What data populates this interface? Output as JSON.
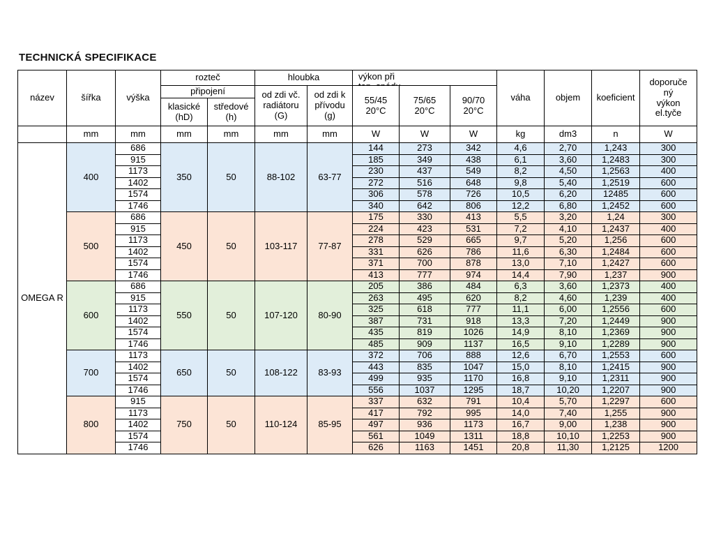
{
  "page_title": "TECHNICKÁ SPECIFIKACE",
  "product_name": "OMEGA R",
  "colors": {
    "blue": "#DDEBF7",
    "salmon": "#FCE4D6",
    "green": "#E2EFDA"
  },
  "header": {
    "nazev": "název",
    "sirka": "šířka",
    "vyska": "výška",
    "roztec": "rozteč",
    "pripojeni": "připojení",
    "klasicke": "klasické\n(hD)",
    "stredove": "středové\n(h)",
    "hloubka": "hloubka",
    "od_zdi_vc": "od zdi  vč.\nradiátoru\n(G)",
    "od_zdi_k": "od zdi  k\npřívodu\n(g)",
    "vykon_line1": "výkon při",
    "vykon_line2": "tep. spádu",
    "t5545": "55/45\n20°C",
    "t7565": "75/65\n20°C",
    "t9070": "90/70\n20°C",
    "vaha": "váha",
    "objem": "objem",
    "koeficient": "koeficient",
    "doporuceny": "doporuče\nný\nvýkon\nel.tyče"
  },
  "units": {
    "nazev": "",
    "sirka": "mm",
    "vyska": "mm",
    "klasicke": "mm",
    "stredove": "mm",
    "hloubka_g": "mm",
    "hloubka_gs": "mm",
    "w1": "W",
    "w2": "W",
    "w3": "W",
    "vaha": "kg",
    "objem": "dm3",
    "koeficient": "n",
    "el": "W"
  },
  "groups": [
    {
      "sirka": "400",
      "color": "blue",
      "roztec": "350",
      "stredove": "50",
      "hloubka_g": "88-102",
      "hloubka_gs": "63-77",
      "rows": [
        [
          "686",
          "144",
          "273",
          "342",
          "4,6",
          "2,70",
          "1,243",
          "300"
        ],
        [
          "915",
          "185",
          "349",
          "438",
          "6,1",
          "3,60",
          "1,2483",
          "300"
        ],
        [
          "1173",
          "230",
          "437",
          "549",
          "8,2",
          "4,50",
          "1,2563",
          "400"
        ],
        [
          "1402",
          "272",
          "516",
          "648",
          "9,8",
          "5,40",
          "1,2519",
          "600"
        ],
        [
          "1574",
          "306",
          "578",
          "726",
          "10,5",
          "6,20",
          "12485",
          "600"
        ],
        [
          "1746",
          "340",
          "642",
          "806",
          "12,2",
          "6,80",
          "1,2452",
          "600"
        ]
      ]
    },
    {
      "sirka": "500",
      "color": "salmon",
      "roztec": "450",
      "stredove": "50",
      "hloubka_g": "103-117",
      "hloubka_gs": "77-87",
      "rows": [
        [
          "686",
          "175",
          "330",
          "413",
          "5,5",
          "3,20",
          "1,24",
          "300"
        ],
        [
          "915",
          "224",
          "423",
          "531",
          "7,2",
          "4,10",
          "1,2437",
          "400"
        ],
        [
          "1173",
          "278",
          "529",
          "665",
          "9,7",
          "5,20",
          "1,256",
          "600"
        ],
        [
          "1402",
          "331",
          "626",
          "786",
          "11,6",
          "6,30",
          "1,2484",
          "600"
        ],
        [
          "1574",
          "371",
          "700",
          "878",
          "13,0",
          "7,10",
          "1,2427",
          "600"
        ],
        [
          "1746",
          "413",
          "777",
          "974",
          "14,4",
          "7,90",
          "1,237",
          "900"
        ]
      ]
    },
    {
      "sirka": "600",
      "color": "green",
      "roztec": "550",
      "stredove": "50",
      "hloubka_g": "107-120",
      "hloubka_gs": "80-90",
      "rows": [
        [
          "686",
          "205",
          "386",
          "484",
          "6,3",
          "3,60",
          "1,2373",
          "400"
        ],
        [
          "915",
          "263",
          "495",
          "620",
          "8,2",
          "4,60",
          "1,239",
          "400"
        ],
        [
          "1173",
          "325",
          "618",
          "777",
          "11,1",
          "6,00",
          "1,2556",
          "600"
        ],
        [
          "1402",
          "387",
          "731",
          "918",
          "13,3",
          "7,20",
          "1,2449",
          "900"
        ],
        [
          "1574",
          "435",
          "819",
          "1026",
          "14,9",
          "8,10",
          "1,2369",
          "900"
        ],
        [
          "1746",
          "485",
          "909",
          "1137",
          "16,5",
          "9,10",
          "1,2289",
          "900"
        ]
      ]
    },
    {
      "sirka": "700",
      "color": "blue",
      "roztec": "650",
      "stredove": "50",
      "hloubka_g": "108-122",
      "hloubka_gs": "83-93",
      "rows": [
        [
          "1173",
          "372",
          "706",
          "888",
          "12,6",
          "6,70",
          "1,2553",
          "600"
        ],
        [
          "1402",
          "443",
          "835",
          "1047",
          "15,0",
          "8,10",
          "1,2415",
          "900"
        ],
        [
          "1574",
          "499",
          "935",
          "1170",
          "16,8",
          "9,10",
          "1,2311",
          "900"
        ],
        [
          "1746",
          "556",
          "1037",
          "1295",
          "18,7",
          "10,20",
          "1,2207",
          "900"
        ]
      ]
    },
    {
      "sirka": "800",
      "color": "salmon",
      "roztec": "750",
      "stredove": "50",
      "hloubka_g": "110-124",
      "hloubka_gs": "85-95",
      "rows": [
        [
          "915",
          "337",
          "632",
          "791",
          "10,4",
          "5,70",
          "1,2297",
          "600"
        ],
        [
          "1173",
          "417",
          "792",
          "995",
          "14,0",
          "7,40",
          "1,255",
          "900"
        ],
        [
          "1402",
          "497",
          "936",
          "1173",
          "16,7",
          "9,00",
          "1,238",
          "900"
        ],
        [
          "1574",
          "561",
          "1049",
          "1311",
          "18,8",
          "10,10",
          "1,2253",
          "900"
        ],
        [
          "1746",
          "626",
          "1163",
          "1451",
          "20,8",
          "11,30",
          "1,2125",
          "1200"
        ]
      ]
    }
  ]
}
